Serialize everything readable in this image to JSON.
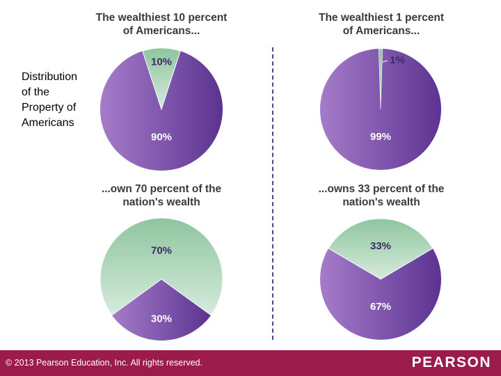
{
  "side_label": [
    "Distribution",
    "of the",
    "Property of",
    "Americans"
  ],
  "chart_data": [
    {
      "type": "pie",
      "title_lines": [
        "The wealthiest 10 percent",
        "of Americans..."
      ],
      "slices": [
        {
          "label": "10%",
          "value": 10,
          "group": "wealthy"
        },
        {
          "label": "90%",
          "value": 90,
          "group": "rest"
        }
      ]
    },
    {
      "type": "pie",
      "title_lines": [
        "The wealthiest 1 percent",
        "of Americans..."
      ],
      "slices": [
        {
          "label": "1%",
          "value": 1,
          "group": "wealthy"
        },
        {
          "label": "99%",
          "value": 99,
          "group": "rest"
        }
      ]
    },
    {
      "type": "pie",
      "title_lines": [
        "...own 70 percent of the",
        "nation's wealth"
      ],
      "slices": [
        {
          "label": "70%",
          "value": 70,
          "group": "wealthy"
        },
        {
          "label": "30%",
          "value": 30,
          "group": "rest"
        }
      ]
    },
    {
      "type": "pie",
      "title_lines": [
        "...owns 33 percent of the",
        "nation's wealth"
      ],
      "slices": [
        {
          "label": "33%",
          "value": 33,
          "group": "wealthy"
        },
        {
          "label": "67%",
          "value": 67,
          "group": "rest"
        }
      ]
    }
  ],
  "colors": {
    "wealthy_light": "#d6ebdc",
    "wealthy_dark": "#8fc59f",
    "rest_light": "#a57cc9",
    "rest_dark": "#5c3391",
    "footer": "#9b1b4b"
  },
  "footer": {
    "copyright": "© 2013  Pearson Education, Inc. All rights reserved.",
    "brand": "PEARSON"
  }
}
